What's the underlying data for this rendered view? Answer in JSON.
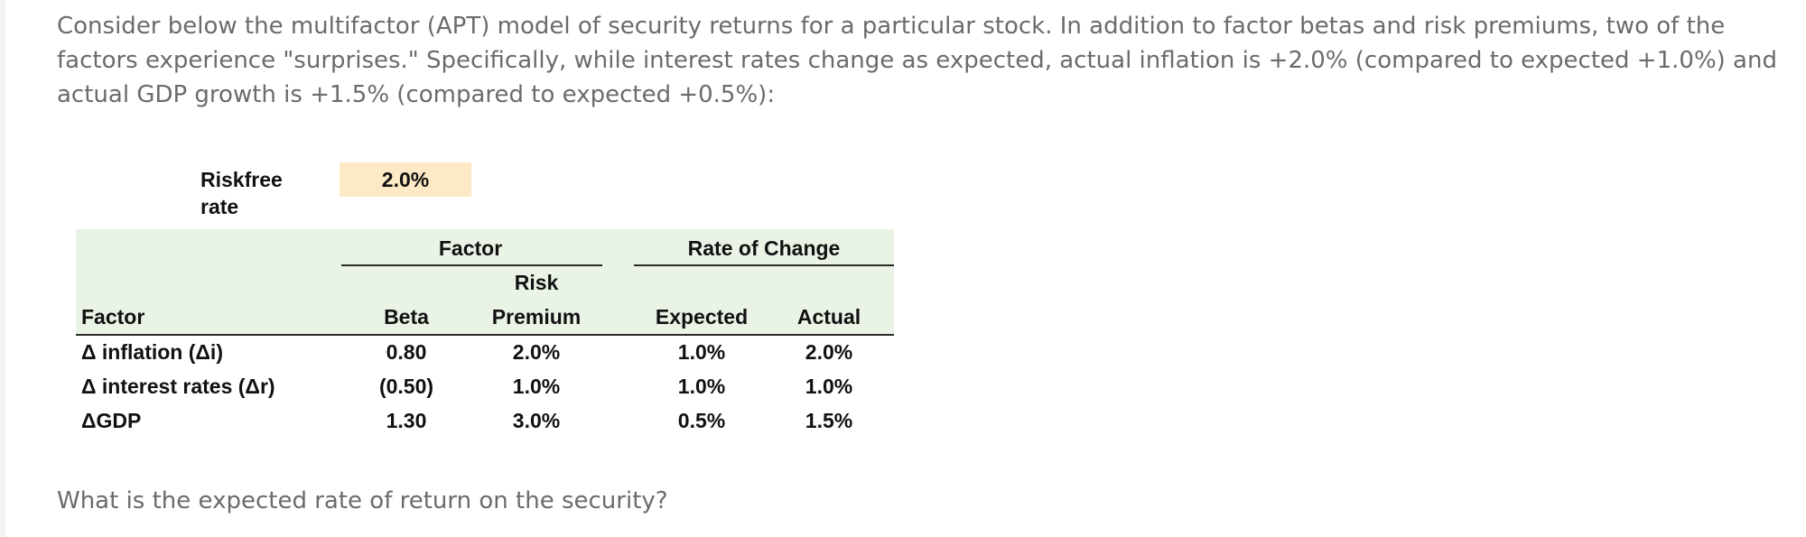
{
  "intro_text": "Consider below the multifactor (APT) model of security returns for a particular stock. In addition to factor betas and risk premiums, two of the factors experience \"surprises.\" Specifically, while interest rates change as expected, actual inflation is +2.0% (compared to expected +1.0%) and actual GDP growth is +1.5% (compared to expected +0.5%):",
  "riskfree": {
    "label": "Riskfree rate",
    "value": "2.0%"
  },
  "table": {
    "group_headers": {
      "factor": "Factor",
      "rate_of_change": "Rate of Change"
    },
    "col_headers": {
      "factor": "Factor",
      "beta": "Beta",
      "risk_premium_line1": "Risk",
      "risk_premium_line2": "Premium",
      "expected": "Expected",
      "actual": "Actual"
    },
    "rows": [
      {
        "factor": "Δ inflation (Δi)",
        "beta": "0.80",
        "risk_premium": "2.0%",
        "expected": "1.0%",
        "actual": "2.0%"
      },
      {
        "factor": "Δ interest rates (Δr)",
        "beta": "(0.50)",
        "risk_premium": "1.0%",
        "expected": "1.0%",
        "actual": "1.0%"
      },
      {
        "factor": "ΔGDP",
        "beta": "1.30",
        "risk_premium": "3.0%",
        "expected": "0.5%",
        "actual": "1.5%"
      }
    ]
  },
  "question_text": "What is the expected rate of return on the security?",
  "colors": {
    "header_fill": "#eaf4e6",
    "riskfree_fill": "#fde9c5",
    "body_text": "#6b6b6b"
  }
}
